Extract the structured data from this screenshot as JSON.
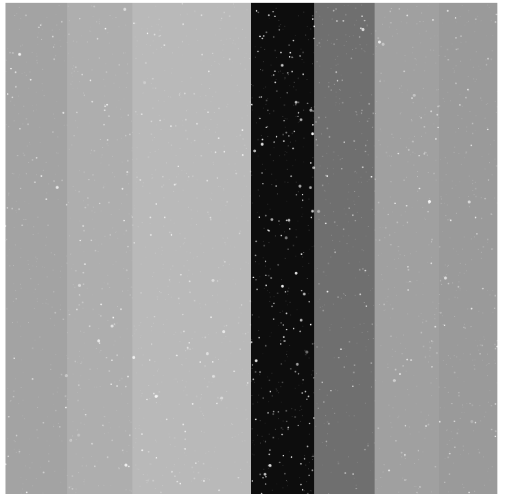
{
  "image": {
    "kind": "grayscale vertical stripes with speckle noise",
    "bands": [
      {
        "name": "left-light-gray",
        "tone": "#a3a3a3"
      },
      {
        "name": "mid-light-gray",
        "tone": "#aeaeae"
      },
      {
        "name": "lightest-gray",
        "tone": "#b9b9b9"
      },
      {
        "name": "black",
        "tone": "#0d0d0d"
      },
      {
        "name": "dark-gray",
        "tone": "#6f6f6f"
      },
      {
        "name": "right-light-gray",
        "tone": "#a0a0a0"
      },
      {
        "name": "right-mid-gray",
        "tone": "#9a9a9a"
      }
    ],
    "speckle": {
      "color": "#f2f2f2",
      "density": "medium"
    }
  }
}
